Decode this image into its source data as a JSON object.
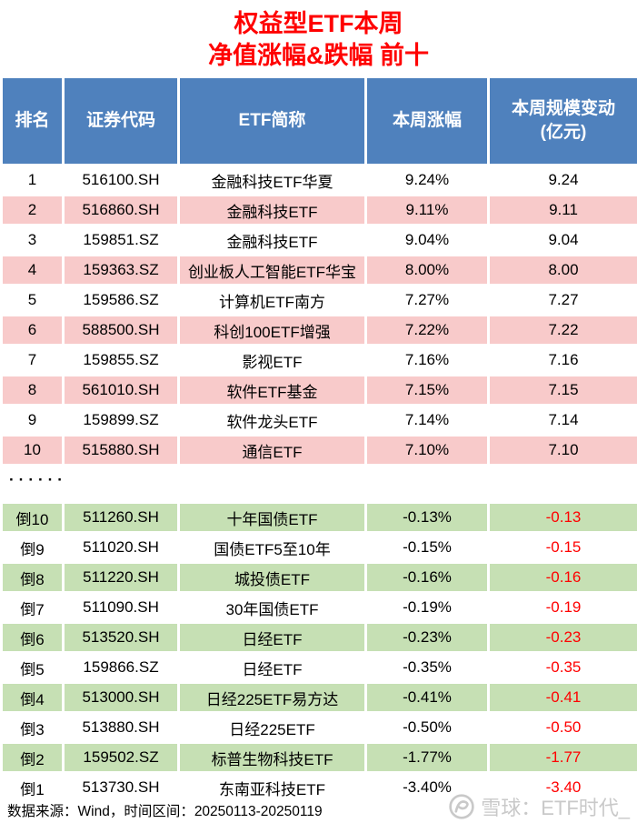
{
  "title": {
    "line1": "权益型ETF本周",
    "line2": "净值涨幅&跌幅 前十"
  },
  "chart_data": {
    "type": "table",
    "title": "权益型ETF本周 净值涨幅&跌幅 前十",
    "columns": [
      "排名",
      "证券代码",
      "ETF简称",
      "本周涨幅",
      "本周规模变动(亿元)"
    ],
    "header_display": [
      "排名",
      "证券代码",
      "ETF简称",
      "本周涨幅",
      "本周规模变动\n(亿元)"
    ],
    "top_rows": [
      {
        "rank": "1",
        "code": "516100.SH",
        "name": "金融科技ETF华夏",
        "change": "9.24%",
        "scale": "9.24"
      },
      {
        "rank": "2",
        "code": "516860.SH",
        "name": "金融科技ETF",
        "change": "9.11%",
        "scale": "9.11"
      },
      {
        "rank": "3",
        "code": "159851.SZ",
        "name": "金融科技ETF",
        "change": "9.04%",
        "scale": "9.04"
      },
      {
        "rank": "4",
        "code": "159363.SZ",
        "name": "创业板人工智能ETF华宝",
        "change": "8.00%",
        "scale": "8.00"
      },
      {
        "rank": "5",
        "code": "159586.SZ",
        "name": "计算机ETF南方",
        "change": "7.27%",
        "scale": "7.27"
      },
      {
        "rank": "6",
        "code": "588500.SH",
        "name": "科创100ETF增强",
        "change": "7.22%",
        "scale": "7.22"
      },
      {
        "rank": "7",
        "code": "159855.SZ",
        "name": "影视ETF",
        "change": "7.16%",
        "scale": "7.16"
      },
      {
        "rank": "8",
        "code": "561010.SH",
        "name": "软件ETF基金",
        "change": "7.15%",
        "scale": "7.15"
      },
      {
        "rank": "9",
        "code": "159899.SZ",
        "name": "软件龙头ETF",
        "change": "7.14%",
        "scale": "7.14"
      },
      {
        "rank": "10",
        "code": "515880.SH",
        "name": "通信ETF",
        "change": "7.10%",
        "scale": "7.10"
      }
    ],
    "separator": "······",
    "bottom_rows": [
      {
        "rank": "倒10",
        "code": "511260.SH",
        "name": "十年国债ETF",
        "change": "-0.13%",
        "scale": "-0.13"
      },
      {
        "rank": "倒9",
        "code": "511020.SH",
        "name": "国债ETF5至10年",
        "change": "-0.15%",
        "scale": "-0.15"
      },
      {
        "rank": "倒8",
        "code": "511220.SH",
        "name": "城投债ETF",
        "change": "-0.16%",
        "scale": "-0.16"
      },
      {
        "rank": "倒7",
        "code": "511090.SH",
        "name": "30年国债ETF",
        "change": "-0.19%",
        "scale": "-0.19"
      },
      {
        "rank": "倒6",
        "code": "513520.SH",
        "name": "日经ETF",
        "change": "-0.23%",
        "scale": "-0.23"
      },
      {
        "rank": "倒5",
        "code": "159866.SZ",
        "name": "日经ETF",
        "change": "-0.35%",
        "scale": "-0.35"
      },
      {
        "rank": "倒4",
        "code": "513000.SH",
        "name": "日经225ETF易方达",
        "change": "-0.41%",
        "scale": "-0.41"
      },
      {
        "rank": "倒3",
        "code": "513880.SH",
        "name": "日经225ETF",
        "change": "-0.50%",
        "scale": "-0.50"
      },
      {
        "rank": "倒2",
        "code": "159502.SZ",
        "name": "标普生物科技ETF",
        "change": "-1.77%",
        "scale": "-1.77"
      },
      {
        "rank": "倒1",
        "code": "513730.SH",
        "name": "东南亚科技ETF",
        "change": "-3.40%",
        "scale": "-3.40"
      }
    ]
  },
  "footer": {
    "source_label": "数据来源：Wind，时间区间：20250113-20250119"
  },
  "watermark": {
    "logo": "xueqiu-circle-logo",
    "text": "雪球：ETF时代_"
  },
  "colors": {
    "title_red": "#ff0000",
    "header_bg": "#4f81bd",
    "header_text": "#ffffff",
    "row_pink": "#f8caca",
    "row_green": "#c6e0b4",
    "negative_red": "#ff0000",
    "watermark_gray": "#c9c9c9"
  }
}
